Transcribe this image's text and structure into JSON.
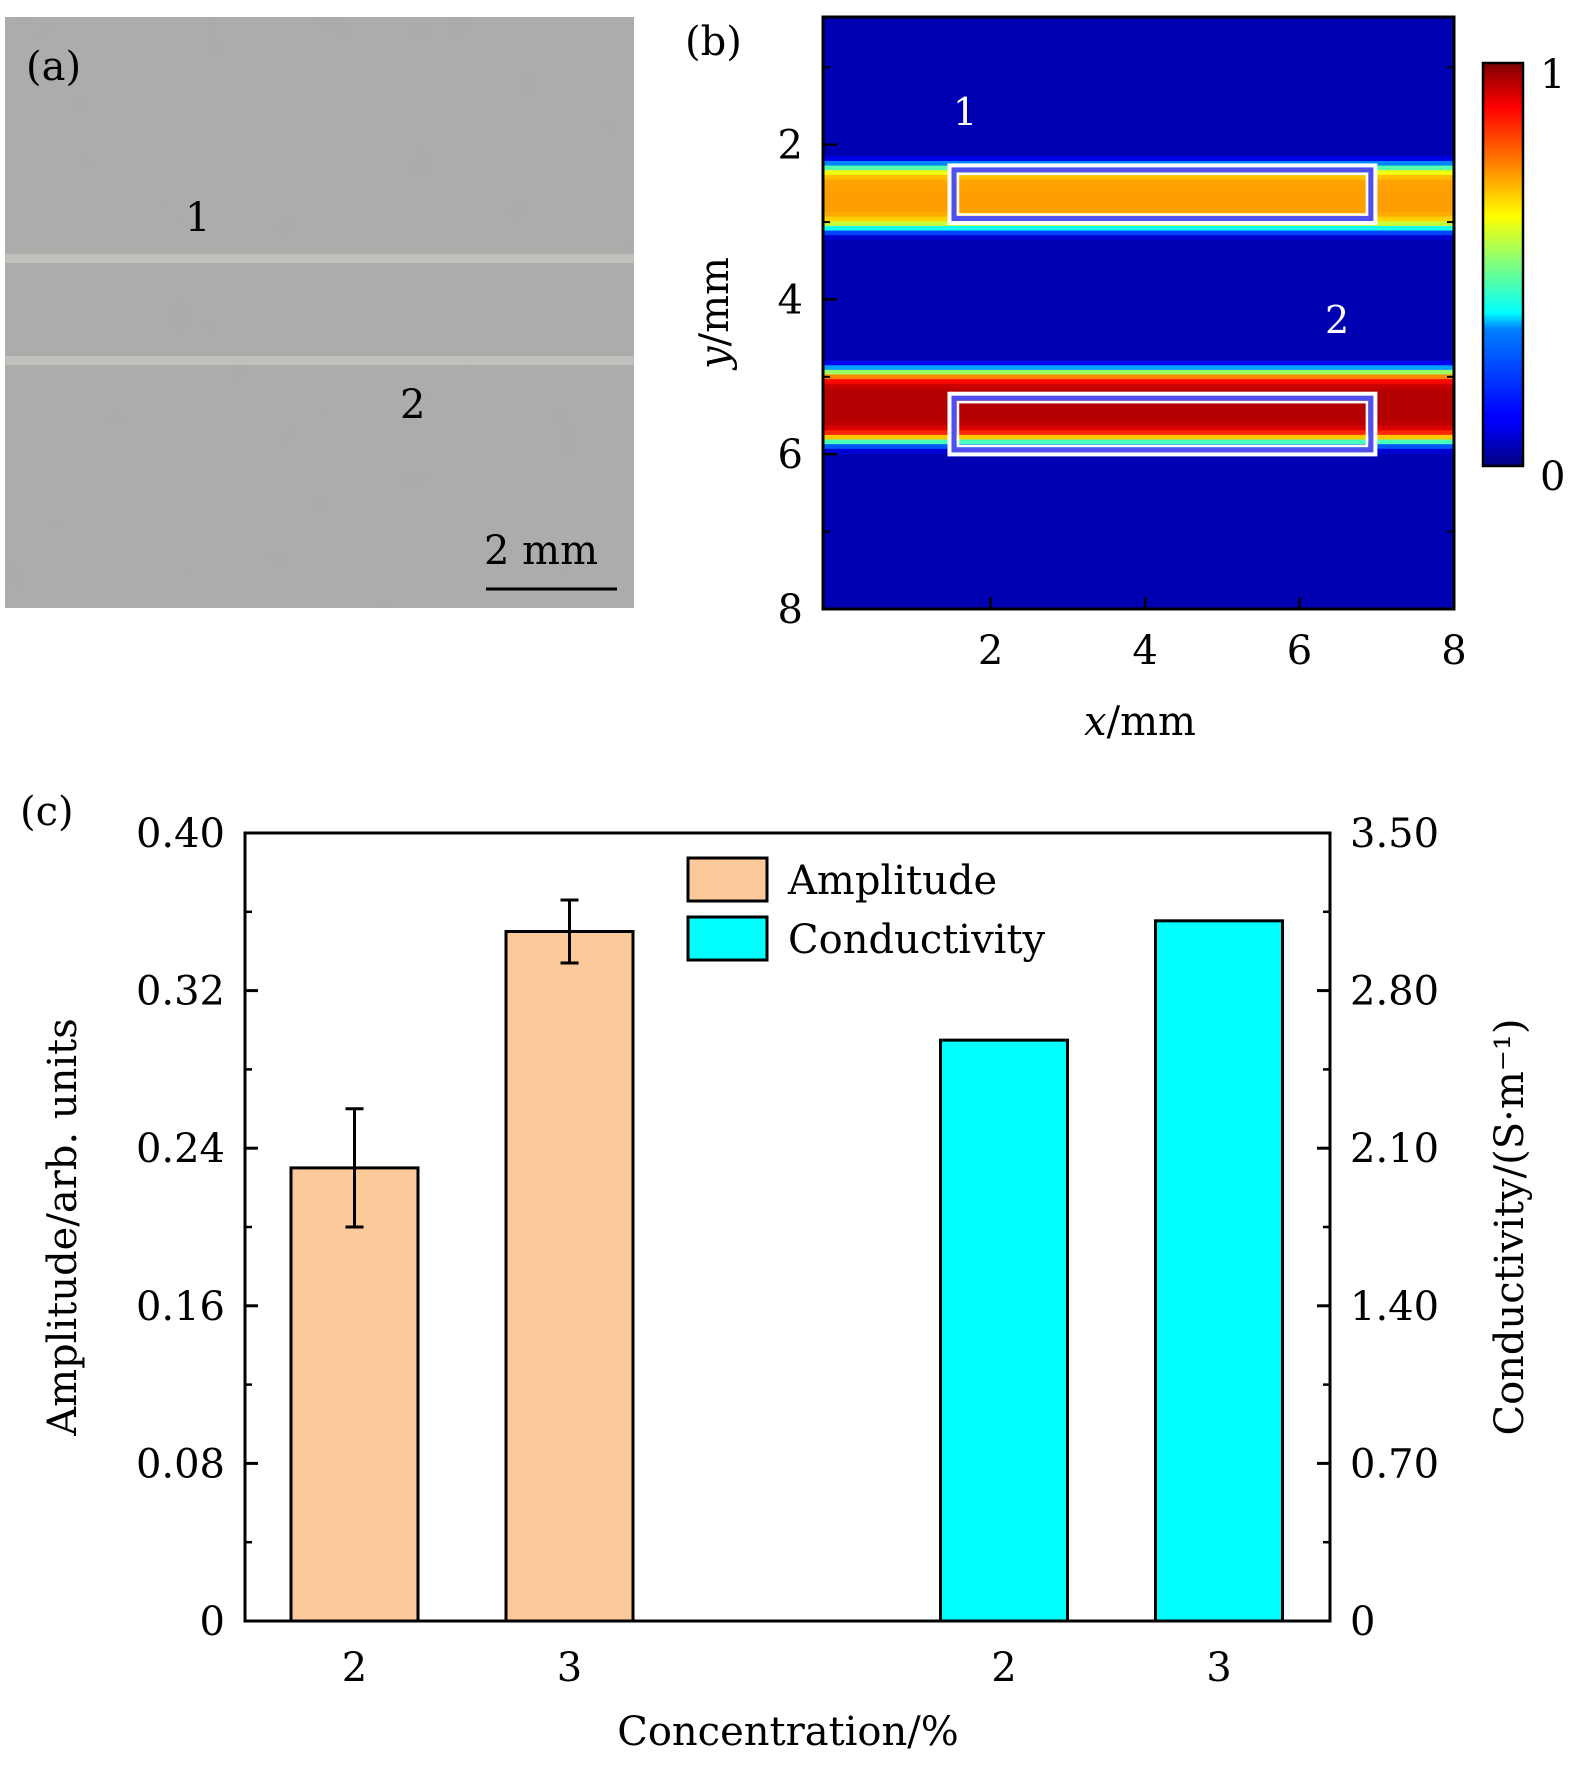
{
  "panels": {
    "a": {
      "label": "(a)",
      "line_labels": [
        "1",
        "2"
      ],
      "scale_bar": "2 mm",
      "colors": {
        "background": "#a9aca8",
        "line": "#c2c4c0"
      }
    },
    "b": {
      "label": "(b)",
      "line_labels": [
        "1",
        "2"
      ],
      "colorbar": {
        "min_label": "0",
        "max_label": "1",
        "colormap": "jet"
      }
    },
    "c": {
      "label": "(c)"
    }
  },
  "chart_data": [
    {
      "panel": "b",
      "type": "heatmap",
      "title": "",
      "xlabel_var": "x",
      "xlabel_unit": "/mm",
      "ylabel_var": "y",
      "ylabel_unit": "/mm",
      "xlim": [
        -0.17,
        8
      ],
      "ylim": [
        0.35,
        8
      ],
      "y_inverted": true,
      "xticks": [
        2,
        4,
        6,
        8
      ],
      "yticks": [
        2,
        4,
        6,
        8
      ],
      "value_range": [
        0,
        1
      ],
      "bands": [
        {
          "name": "line 1",
          "y_center": 2.65,
          "half_width": 0.45,
          "peak": 0.72
        },
        {
          "name": "line 2",
          "y_center": 5.35,
          "half_width": 0.5,
          "peak": 0.95
        }
      ],
      "roi_boxes": [
        {
          "name": "box-1",
          "x": [
            1.5,
            6.95
          ],
          "y": [
            2.3,
            2.98
          ]
        },
        {
          "name": "box-2",
          "x": [
            1.5,
            6.95
          ],
          "y": [
            5.25,
            5.97
          ]
        }
      ]
    },
    {
      "panel": "c",
      "type": "bar",
      "title": "",
      "xlabel": "Concentration/%",
      "categories": [
        "2",
        "3",
        "2",
        "3"
      ],
      "ylabel_left": "Amplitude/arb. units",
      "ylabel_right": "Conductivity/(S·m⁻¹)",
      "ylim_left": [
        0,
        0.4
      ],
      "ylim_right": [
        0,
        3.5
      ],
      "yticks_left": [
        "0",
        "0.08",
        "0.16",
        "0.24",
        "0.32",
        "0.40"
      ],
      "yticks_right": [
        "0",
        "0.70",
        "1.40",
        "2.10",
        "2.80",
        "3.50"
      ],
      "legend_position": "top-center",
      "series": [
        {
          "name": "Amplitude",
          "axis": "left",
          "color": "#fbc99a",
          "categories": [
            "2",
            "3"
          ],
          "values": [
            0.23,
            0.35
          ],
          "errors": [
            0.03,
            0.016
          ]
        },
        {
          "name": "Conductivity",
          "axis": "right",
          "color": "#00ffff",
          "categories": [
            "2",
            "3"
          ],
          "values": [
            2.58,
            3.11
          ]
        }
      ]
    }
  ]
}
